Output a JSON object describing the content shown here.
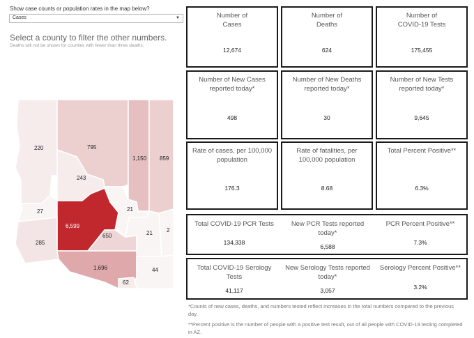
{
  "controls": {
    "question": "Show case counts or population rates in the map below?",
    "selected": "Cases",
    "dropdown_icon": "triangle-down-icon"
  },
  "map_panel": {
    "instruction": "Select a county to filter the other numbers.",
    "note": "Deaths will not be shown for counties with fewer than three deaths.",
    "counties": [
      {
        "id": "mohave",
        "value": "220",
        "color": "#f6ecec"
      },
      {
        "id": "coconino",
        "value": "795",
        "color": "#ecd0d0"
      },
      {
        "id": "navajo",
        "value": "1,150",
        "color": "#e6c0c0"
      },
      {
        "id": "apache",
        "value": "859",
        "color": "#ecd0d0"
      },
      {
        "id": "yavapai",
        "value": "243",
        "color": "#f6ecec"
      },
      {
        "id": "la-paz",
        "value": "27",
        "color": "#faf5f5"
      },
      {
        "id": "maricopa",
        "value": "6,599",
        "color": "#c0282e"
      },
      {
        "id": "gila",
        "value": "21",
        "color": "#faf5f5"
      },
      {
        "id": "pinal",
        "value": "650",
        "color": "#eed6d6"
      },
      {
        "id": "graham",
        "value": "21",
        "color": "#faf5f5"
      },
      {
        "id": "greenlee",
        "value": "2",
        "color": "#faf5f5"
      },
      {
        "id": "yuma",
        "value": "285",
        "color": "#f3e5e5"
      },
      {
        "id": "pima",
        "value": "1,696",
        "color": "#dfa8aa"
      },
      {
        "id": "cochise",
        "value": "44",
        "color": "#faf5f5"
      },
      {
        "id": "santa-cruz",
        "value": "62",
        "color": "#f6ecec"
      }
    ]
  },
  "cards": [
    {
      "label": "Number of\nCases",
      "value": "12,674"
    },
    {
      "label": "Number of\nDeaths",
      "value": "624"
    },
    {
      "label": "Number of\nCOVID-19 Tests",
      "value": "175,455"
    },
    {
      "label": "Number of New Cases\nreported today*",
      "value": "498"
    },
    {
      "label": "Number of New Deaths\nreported today*",
      "value": "30"
    },
    {
      "label": "Number of New Tests\nreported today*",
      "value": "9,645"
    },
    {
      "label": "Rate of cases, per 100,000\npopulation",
      "value": "176.3"
    },
    {
      "label": "Rate of fatalities, per\n100,000 population",
      "value": "8.68"
    },
    {
      "label": "Total Percent Positive**",
      "value": "6.3%"
    }
  ],
  "pcr_row": [
    {
      "label": "Total COVID-19 PCR Tests",
      "value": "134,338"
    },
    {
      "label": "New PCR Tests reported\ntoday*",
      "value": "6,588"
    },
    {
      "label": "PCR Percent Positive**",
      "value": "7.3%"
    }
  ],
  "serology_row": [
    {
      "label": "Total COVID-19 Serology\nTests",
      "value": "41,117"
    },
    {
      "label": "New Serology Tests reported\ntoday*",
      "value": "3,057"
    },
    {
      "label": "Serology Percent Positive**",
      "value": "3.2%"
    }
  ],
  "footnotes": {
    "note1": "*Counts of new cases, deaths, and numbers tested reflect increases in the total numbers compared to the previous day.",
    "note2": "**Percent positive is the number of people with a positive test result, out of all people with COVID-19 testing completed in AZ."
  }
}
